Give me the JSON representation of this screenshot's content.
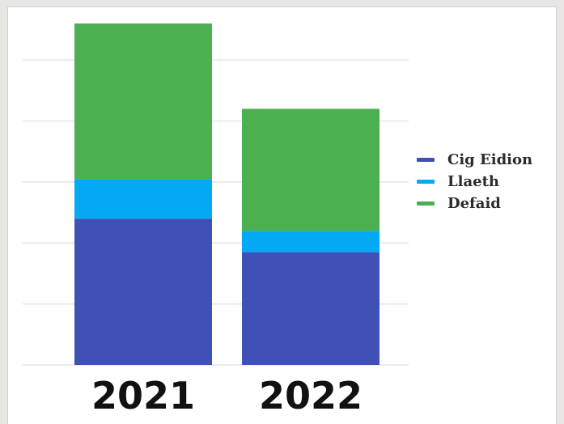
{
  "chart_data": {
    "type": "bar",
    "stacked": true,
    "categories": [
      "2021",
      "2022"
    ],
    "series": [
      {
        "name": "Cig Eidion",
        "values": [
          2.4,
          1.85
        ],
        "color": "#3f51b5"
      },
      {
        "name": "Llaeth",
        "values": [
          0.65,
          0.35
        ],
        "color": "#03a9f4"
      },
      {
        "name": "Defaid",
        "values": [
          2.55,
          2.0
        ],
        "color": "#4caf50"
      }
    ],
    "ylim": [
      0,
      5.8
    ],
    "grid": true,
    "legend_position": "right",
    "title": "",
    "xlabel": "",
    "ylabel": ""
  }
}
